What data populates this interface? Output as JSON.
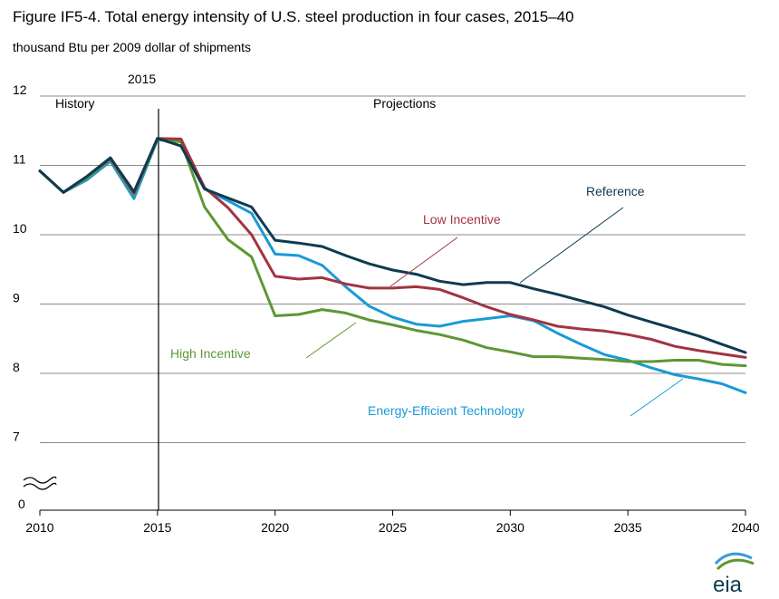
{
  "figure": {
    "title": "Figure IF5-4. Total energy intensity of U.S. steel production in four cases, 2015–40",
    "subtitle": "thousand Btu per 2009 dollar of shipments",
    "history_label": "History",
    "projections_label": "Projections",
    "divider_year_label": "2015",
    "axis_break_symbol": "≈",
    "logo_text": "eia"
  },
  "chart_data": {
    "type": "line",
    "title": "Figure IF5-4. Total energy intensity of U.S. steel production in four cases, 2015–40",
    "ylabel": "thousand Btu per 2009 dollar of shipments",
    "xlabel": "",
    "xlim": [
      2010,
      2040
    ],
    "ylim": [
      7,
      12
    ],
    "y_axis_break": true,
    "y_ticks": [
      "12",
      "11",
      "10",
      "9",
      "8",
      "7",
      "0"
    ],
    "x_ticks": [
      "2010",
      "2015",
      "2020",
      "2025",
      "2030",
      "2035",
      "2040"
    ],
    "grid": true,
    "x": [
      2010,
      2011,
      2012,
      2013,
      2014,
      2015,
      2016,
      2017,
      2018,
      2019,
      2020,
      2021,
      2022,
      2023,
      2024,
      2025,
      2026,
      2027,
      2028,
      2029,
      2030,
      2031,
      2032,
      2033,
      2034,
      2035,
      2036,
      2037,
      2038,
      2039,
      2040
    ],
    "series": [
      {
        "name": "Energy-Efficient Technology",
        "color": "#1a9ad6",
        "values": [
          10.92,
          10.61,
          10.79,
          11.06,
          10.52,
          11.37,
          11.34,
          10.66,
          10.49,
          10.31,
          9.72,
          9.7,
          9.56,
          9.25,
          8.97,
          8.81,
          8.71,
          8.68,
          8.75,
          8.79,
          8.83,
          8.76,
          8.58,
          8.42,
          8.27,
          8.19,
          8.08,
          7.98,
          7.92,
          7.85,
          7.72
        ]
      },
      {
        "name": "High Incentive",
        "color": "#5d9732",
        "values": [
          10.92,
          10.61,
          10.82,
          11.09,
          10.58,
          11.38,
          11.34,
          10.4,
          9.93,
          9.68,
          8.83,
          8.85,
          8.92,
          8.87,
          8.77,
          8.7,
          8.62,
          8.56,
          8.48,
          8.37,
          8.31,
          8.24,
          8.24,
          8.22,
          8.2,
          8.17,
          8.17,
          8.19,
          8.19,
          8.13,
          8.11
        ]
      },
      {
        "name": "Low Incentive",
        "color": "#a33340",
        "values": [
          10.92,
          10.61,
          10.84,
          11.1,
          10.6,
          11.39,
          11.38,
          10.68,
          10.39,
          10.0,
          9.4,
          9.36,
          9.38,
          9.29,
          9.23,
          9.23,
          9.25,
          9.21,
          9.09,
          8.96,
          8.85,
          8.77,
          8.68,
          8.64,
          8.61,
          8.56,
          8.49,
          8.39,
          8.33,
          8.28,
          8.23
        ]
      },
      {
        "name": "Reference",
        "color": "#0f3b50",
        "values": [
          10.92,
          10.61,
          10.84,
          11.11,
          10.62,
          11.39,
          11.28,
          10.66,
          10.53,
          10.4,
          9.92,
          9.88,
          9.83,
          9.7,
          9.58,
          9.49,
          9.43,
          9.33,
          9.28,
          9.31,
          9.31,
          9.22,
          9.14,
          9.05,
          8.96,
          8.84,
          8.74,
          8.64,
          8.54,
          8.42,
          8.3
        ]
      }
    ]
  }
}
